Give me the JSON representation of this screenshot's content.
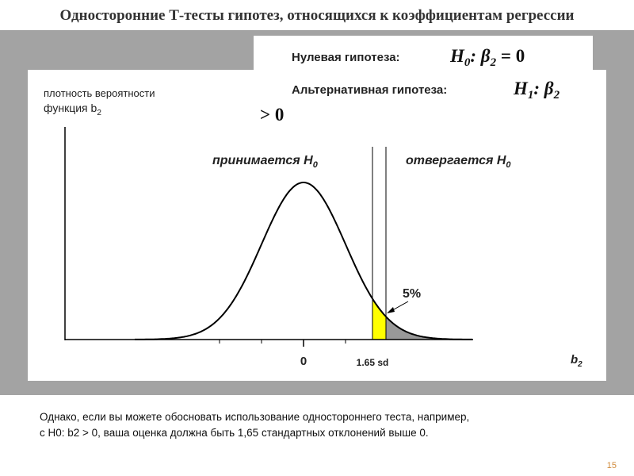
{
  "header": {
    "title": "Односторонние Т-тесты гипотез, относящихся к коэффициентам регрессии"
  },
  "hypotheses": {
    "null": {
      "label": "Нулевая гипотеза:",
      "formula": [
        "H",
        "0",
        ": β",
        "2",
        " = 0"
      ]
    },
    "alternative": {
      "label": "Альтернативная гипотеза:",
      "formula": [
        "H",
        "1",
        ": β",
        "2"
      ],
      "continuation": "> 0"
    }
  },
  "diagram": {
    "y_label": {
      "line1": "плотность вероятности",
      "line2": [
        "функция b",
        "2"
      ]
    },
    "accept": [
      "принимается H",
      "0"
    ],
    "reject": [
      "отвергается H",
      "0"
    ],
    "tail": "5%",
    "zero": "0",
    "critical": "1.65 sd",
    "x_label": [
      "b",
      "2"
    ]
  },
  "footer": {
    "note": [
      "Однако, если вы можете обосновать использование одностороннего теста, например,",
      "с H0: b2 > 0, ваша оценка должна быть  1,65 стандартных отклонений выше 0."
    ],
    "page": "15"
  }
}
